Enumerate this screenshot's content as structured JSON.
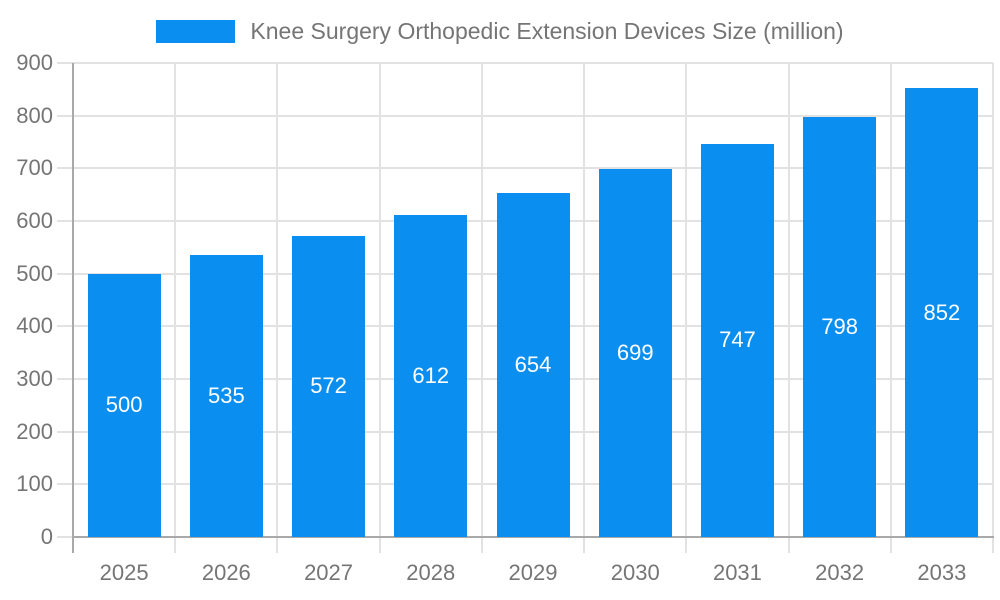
{
  "chart_data": {
    "type": "bar",
    "title": "Knee Surgery Orthopedic Extension Devices Size (million)",
    "series_name": "Knee Surgery Orthopedic Extension Devices Size (million)",
    "categories": [
      "2025",
      "2026",
      "2027",
      "2028",
      "2029",
      "2030",
      "2031",
      "2032",
      "2033"
    ],
    "values": [
      500,
      535,
      572,
      612,
      654,
      699,
      747,
      798,
      852
    ],
    "xlabel": "",
    "ylabel": "",
    "ylim": [
      0,
      900
    ],
    "yticks": [
      0,
      100,
      200,
      300,
      400,
      500,
      600,
      700,
      800,
      900
    ],
    "grid": true,
    "legend_position": "top-center",
    "value_labels": "inside-center"
  },
  "style": {
    "bar_color": "#0a8ff0",
    "axis_label_color": "#757575",
    "grid_color": "#e2e2e2",
    "axis_line_color": "#a9a9a9",
    "value_label_color": "#ffffff",
    "background": "#ffffff"
  }
}
